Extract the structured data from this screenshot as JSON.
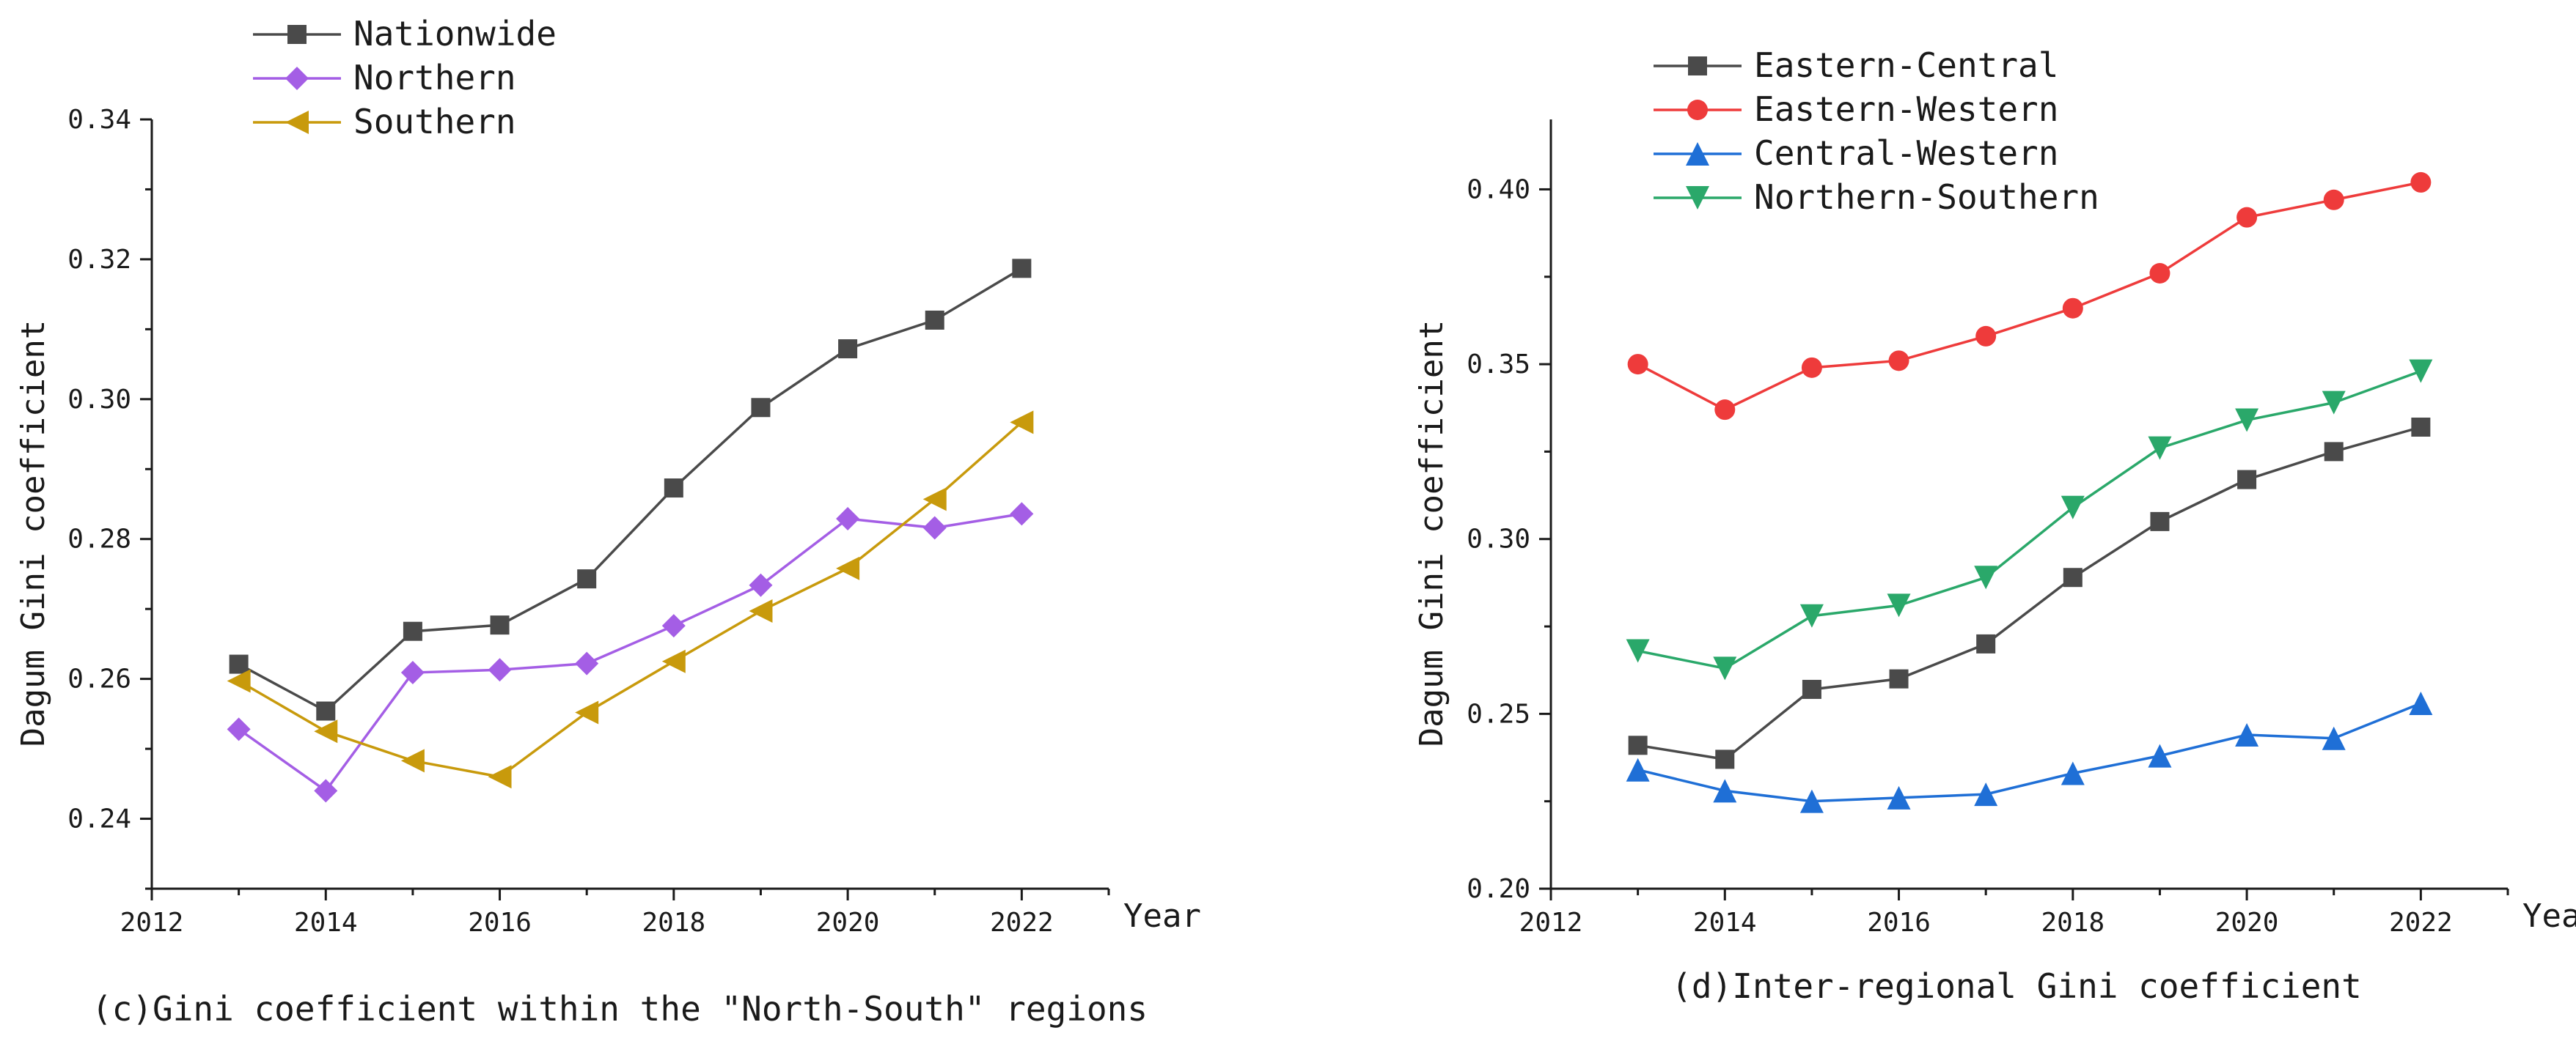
{
  "chart_data": [
    {
      "type": "line",
      "caption": "(c)Gini coefficient within the \"North-South\" regions",
      "xlabel": "Year",
      "ylabel": "Dagum Gini coefficient",
      "xlim": [
        2012,
        2023
      ],
      "ylim": [
        0.23,
        0.34
      ],
      "xticks": [
        2012,
        2014,
        2016,
        2018,
        2020,
        2022
      ],
      "xtick_labels": [
        "2012",
        "2014",
        "2016",
        "2018",
        "2020",
        "2022"
      ],
      "yticks": [
        0.24,
        0.26,
        0.28,
        0.3,
        0.32,
        0.34
      ],
      "ytick_labels": [
        "0.24",
        "0.26",
        "0.28",
        "0.30",
        "0.32",
        "0.34"
      ],
      "x": [
        2013,
        2014,
        2015,
        2016,
        2017,
        2018,
        2019,
        2020,
        2021,
        2022
      ],
      "legend_position": "top-left",
      "series": [
        {
          "name": "Nationwide",
          "color": "#4a4a4a",
          "marker": "square",
          "values": [
            0.2621,
            0.2554,
            0.2668,
            0.2677,
            0.2743,
            0.2873,
            0.2988,
            0.3072,
            0.3113,
            0.3187
          ]
        },
        {
          "name": "Northern",
          "color": "#a45ee5",
          "marker": "diamond",
          "values": [
            0.2528,
            0.244,
            0.2609,
            0.2613,
            0.2622,
            0.2676,
            0.2734,
            0.2829,
            0.2816,
            0.2836
          ]
        },
        {
          "name": "Southern",
          "color": "#c89a0c",
          "marker": "triangle-left",
          "values": [
            0.2597,
            0.2525,
            0.2483,
            0.246,
            0.2552,
            0.2625,
            0.2697,
            0.2758,
            0.2857,
            0.2967
          ]
        }
      ]
    },
    {
      "type": "line",
      "caption": "(d)Inter-regional Gini coefficient",
      "xlabel": "Year",
      "ylabel": "Dagum Gini coefficient",
      "xlim": [
        2012,
        2023
      ],
      "ylim": [
        0.2,
        0.42
      ],
      "xticks": [
        2012,
        2014,
        2016,
        2018,
        2020,
        2022
      ],
      "xtick_labels": [
        "2012",
        "2014",
        "2016",
        "2018",
        "2020",
        "2022"
      ],
      "yticks": [
        0.2,
        0.25,
        0.3,
        0.35,
        0.4
      ],
      "ytick_labels": [
        "0.20",
        "0.25",
        "0.30",
        "0.35",
        "0.40"
      ],
      "x": [
        2013,
        2014,
        2015,
        2016,
        2017,
        2018,
        2019,
        2020,
        2021,
        2022
      ],
      "legend_position": "top-left",
      "series": [
        {
          "name": "Eastern-Central",
          "color": "#4a4a4a",
          "marker": "square",
          "values": [
            0.241,
            0.237,
            0.257,
            0.26,
            0.27,
            0.289,
            0.305,
            0.317,
            0.325,
            0.332
          ]
        },
        {
          "name": "Eastern-Western",
          "color": "#ee3b3b",
          "marker": "circle",
          "values": [
            0.35,
            0.337,
            0.349,
            0.351,
            0.358,
            0.366,
            0.376,
            0.392,
            0.397,
            0.402
          ]
        },
        {
          "name": "Central-Western",
          "color": "#1f6fd6",
          "marker": "triangle-up",
          "values": [
            0.234,
            0.228,
            0.225,
            0.226,
            0.227,
            0.233,
            0.238,
            0.244,
            0.243,
            0.253
          ]
        },
        {
          "name": "Northern-Southern",
          "color": "#2aa86a",
          "marker": "triangle-down",
          "values": [
            0.268,
            0.263,
            0.278,
            0.281,
            0.289,
            0.309,
            0.326,
            0.334,
            0.339,
            0.348
          ]
        }
      ]
    }
  ]
}
